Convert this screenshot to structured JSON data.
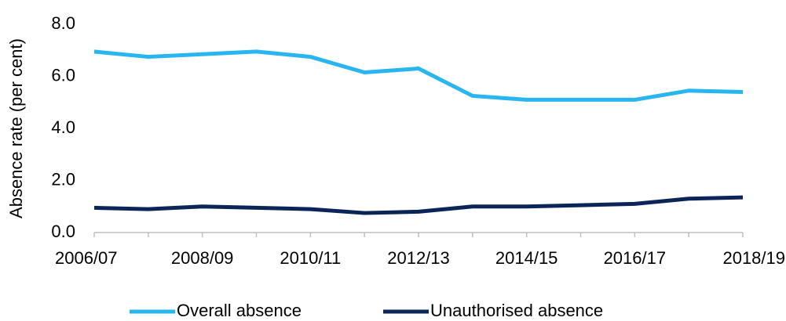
{
  "chart_data": {
    "type": "line",
    "y_label": "Absence rate (per cent)",
    "categories": [
      "2006/07",
      null,
      "2008/09",
      null,
      "2010/11",
      null,
      "2012/13",
      null,
      "2014/15",
      null,
      "2016/17",
      null,
      "2018/19"
    ],
    "series": [
      {
        "name": "Overall absence",
        "color": "#29b5ef",
        "values": [
          6.95,
          6.75,
          6.85,
          6.95,
          6.75,
          6.15,
          6.3,
          5.25,
          5.1,
          5.1,
          5.1,
          5.45,
          5.4
        ]
      },
      {
        "name": "Unauthorised absence",
        "color": "#0b2559",
        "values": [
          0.95,
          0.9,
          1.0,
          0.95,
          0.9,
          0.75,
          0.8,
          1.0,
          1.0,
          1.05,
          1.1,
          1.3,
          1.35
        ]
      }
    ],
    "ylim": [
      0,
      8
    ],
    "yticks": [
      {
        "value": 0,
        "label": "0.0"
      },
      {
        "value": 2,
        "label": "2.0"
      },
      {
        "value": 4,
        "label": "4.0"
      },
      {
        "value": 6,
        "label": "6.0"
      },
      {
        "value": 8,
        "label": "8.0"
      }
    ],
    "grid": false,
    "legend": "bottom"
  }
}
